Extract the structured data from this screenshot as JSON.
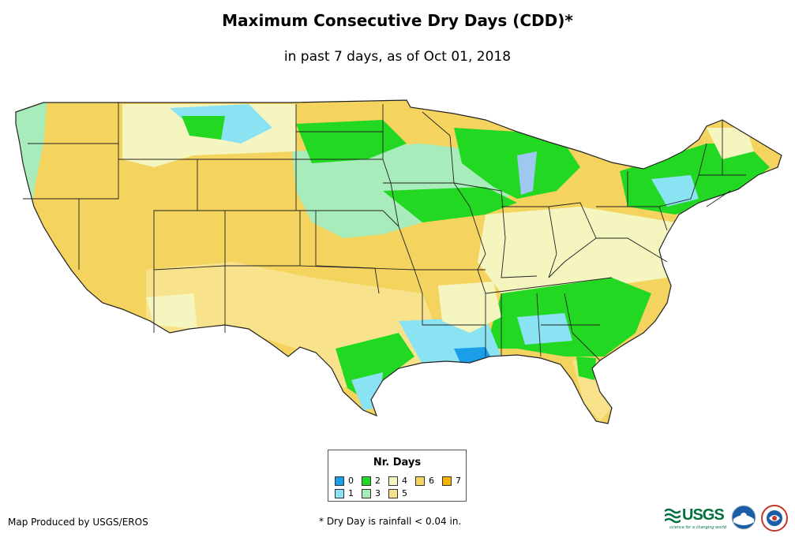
{
  "title": "Maximum Consecutive Dry Days (CDD)*",
  "subtitle": "in past 7 days, as of Oct 01, 2018",
  "legend": {
    "title": "Nr. Days",
    "items": [
      {
        "label": "0",
        "color": "#1a9ee8"
      },
      {
        "label": "1",
        "color": "#8ae3f2"
      },
      {
        "label": "2",
        "color": "#22d822"
      },
      {
        "label": "3",
        "color": "#a8ecbc"
      },
      {
        "label": "4",
        "color": "#f5f5c0"
      },
      {
        "label": "5",
        "color": "#f8e38c"
      },
      {
        "label": "6",
        "color": "#f4d35e"
      },
      {
        "label": "7",
        "color": "#f5b400"
      }
    ]
  },
  "credit": "Map Produced by USGS/EROS",
  "footnote": "* Dry Day is rainfall < 0.04 in.",
  "logos": {
    "usgs": "USGS",
    "usgs_tagline": "science for a changing world"
  }
}
